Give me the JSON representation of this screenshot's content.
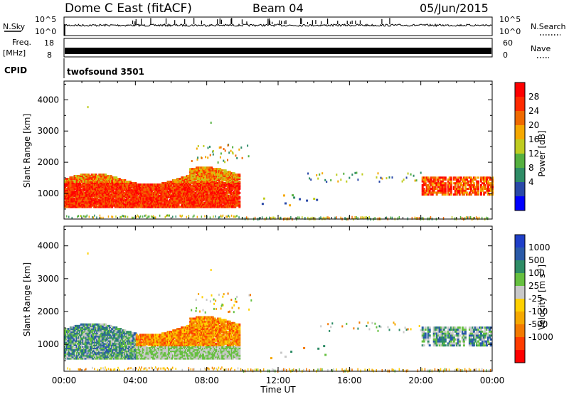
{
  "header": {
    "title": "Dome C East (fitACF)",
    "beam": "Beam 04",
    "date": "05/Jun/2015"
  },
  "top_panels": {
    "nsky": {
      "label": "N.Sky",
      "ticks": [
        "10^5",
        "10^0"
      ],
      "right_label": "N.Search",
      "right_ticks": [
        "10^5",
        "10^0"
      ]
    },
    "freq": {
      "label_line1": "Freq.",
      "label_line2": "[MHz]",
      "ticks": [
        "18",
        "8"
      ],
      "right_label": "Nave",
      "right_ticks": [
        "60",
        "0"
      ]
    },
    "cpid": {
      "label": "CPID",
      "value": "twofsound 3501"
    }
  },
  "colors": {
    "power": [
      "#0000ff",
      "#2a49a8",
      "#2e8c66",
      "#55b040",
      "#bfcc20",
      "#f5a800",
      "#f06a00",
      "#ff2a00",
      "#ff0000"
    ],
    "velocity": [
      "#ff0000",
      "#ff3c00",
      "#f37a00",
      "#f5a800",
      "#ffd000",
      "#c8c8c8",
      "#66c040",
      "#2e8c66",
      "#2a5aa8",
      "#1f3fc8"
    ]
  },
  "chart_data": [
    {
      "type": "heatmap",
      "name": "power",
      "xlabel": "",
      "ylabel": "Slant Range [km]",
      "x_range": [
        "00:00",
        "00:00"
      ],
      "ylim": [
        180,
        4600
      ],
      "yticks": [
        "4000",
        "3000",
        "2000",
        "1000"
      ],
      "colorbar": {
        "label": "Power [dB]",
        "ticks": [
          "28",
          "24",
          "20",
          "16",
          "12",
          "8",
          "4"
        ]
      }
    },
    {
      "type": "heatmap",
      "name": "velocity",
      "xlabel": "Time UT",
      "ylabel": "Slant Range [km]",
      "x_range": [
        "00:00",
        "00:00"
      ],
      "xticks": [
        "00:00",
        "04:00",
        "08:00",
        "12:00",
        "16:00",
        "20:00",
        "00:00"
      ],
      "ylim": [
        180,
        4600
      ],
      "yticks": [
        "4000",
        "3000",
        "2000",
        "1000"
      ],
      "colorbar": {
        "label": "Velocity",
        "label_unit": "[m s-1]",
        "ticks": [
          "1000",
          "500",
          "100",
          "25",
          "-25",
          "-100",
          "-500",
          "-1000"
        ]
      }
    }
  ]
}
